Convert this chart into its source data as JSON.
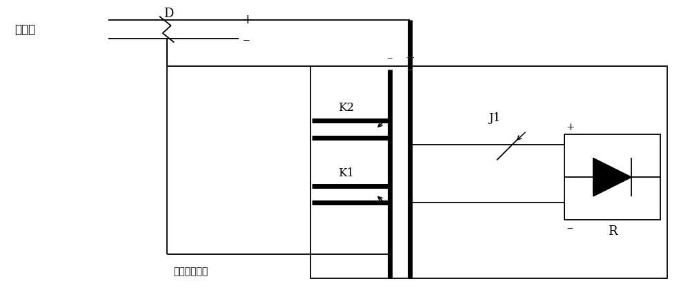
{
  "bg_color": "#ffffff",
  "line_color": "#000000",
  "fig_width": 10.0,
  "fig_height": 4.21,
  "dpi": 100,
  "labels": {
    "jie_chu_wang": "接触网",
    "zhi_liu": "直流馈出电缆",
    "D": "D",
    "plus": "+",
    "minus": "–",
    "K2": "K2",
    "K1": "K1",
    "J1": "J1",
    "R": "R"
  }
}
